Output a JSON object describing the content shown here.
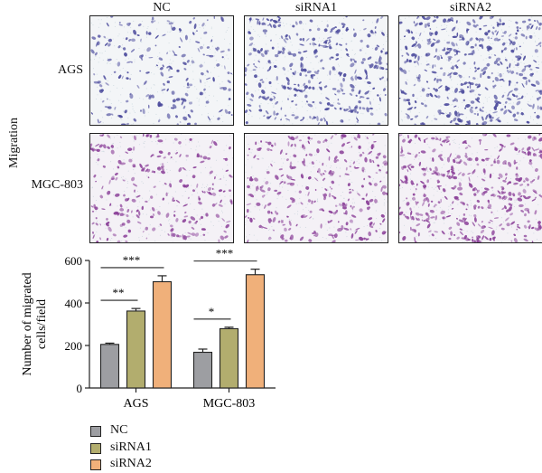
{
  "figure": {
    "columns": [
      "NC",
      "siRNA1",
      "siRNA2"
    ],
    "rows": [
      "AGS",
      "MGC-803"
    ],
    "side_label": "Migration",
    "panel_palettes": {
      "AGS": {
        "background": "#f3f5f7",
        "cell": "#4b4a9c"
      },
      "MGC-803": {
        "background": "#f4f1f6",
        "cell": "#8a3f98"
      }
    },
    "panel_density": {
      "AGS": [
        0.35,
        0.75,
        1.0
      ],
      "MGC-803": [
        0.45,
        0.6,
        0.9
      ]
    }
  },
  "chart_data": {
    "type": "bar",
    "categories": [
      "AGS",
      "MGC-803"
    ],
    "series": [
      {
        "name": "NC",
        "values": [
          205,
          168
        ],
        "errors": [
          6,
          15
        ],
        "color": "#9d9ea2"
      },
      {
        "name": "siRNA1",
        "values": [
          362,
          279
        ],
        "errors": [
          12,
          7
        ],
        "color": "#b2ad6e"
      },
      {
        "name": "siRNA2",
        "values": [
          500,
          533
        ],
        "errors": [
          28,
          26
        ],
        "color": "#f0b07a"
      }
    ],
    "ylabel": "Number of migrated cells/field",
    "ylabel_lines": [
      "Number of migrated",
      "cells/field"
    ],
    "ylim": [
      0,
      600
    ],
    "yticks": [
      0,
      200,
      400,
      600
    ],
    "significance": [
      {
        "category": "AGS",
        "from": "NC",
        "to": "siRNA1",
        "label": "**"
      },
      {
        "category": "AGS",
        "from": "NC",
        "to": "siRNA2",
        "label": "***"
      },
      {
        "category": "MGC-803",
        "from": "NC",
        "to": "siRNA1",
        "label": "*"
      },
      {
        "category": "MGC-803",
        "from": "NC",
        "to": "siRNA2",
        "label": "***"
      }
    ],
    "legend": [
      "NC",
      "siRNA1",
      "siRNA2"
    ],
    "legend_position": "bottom-left"
  }
}
